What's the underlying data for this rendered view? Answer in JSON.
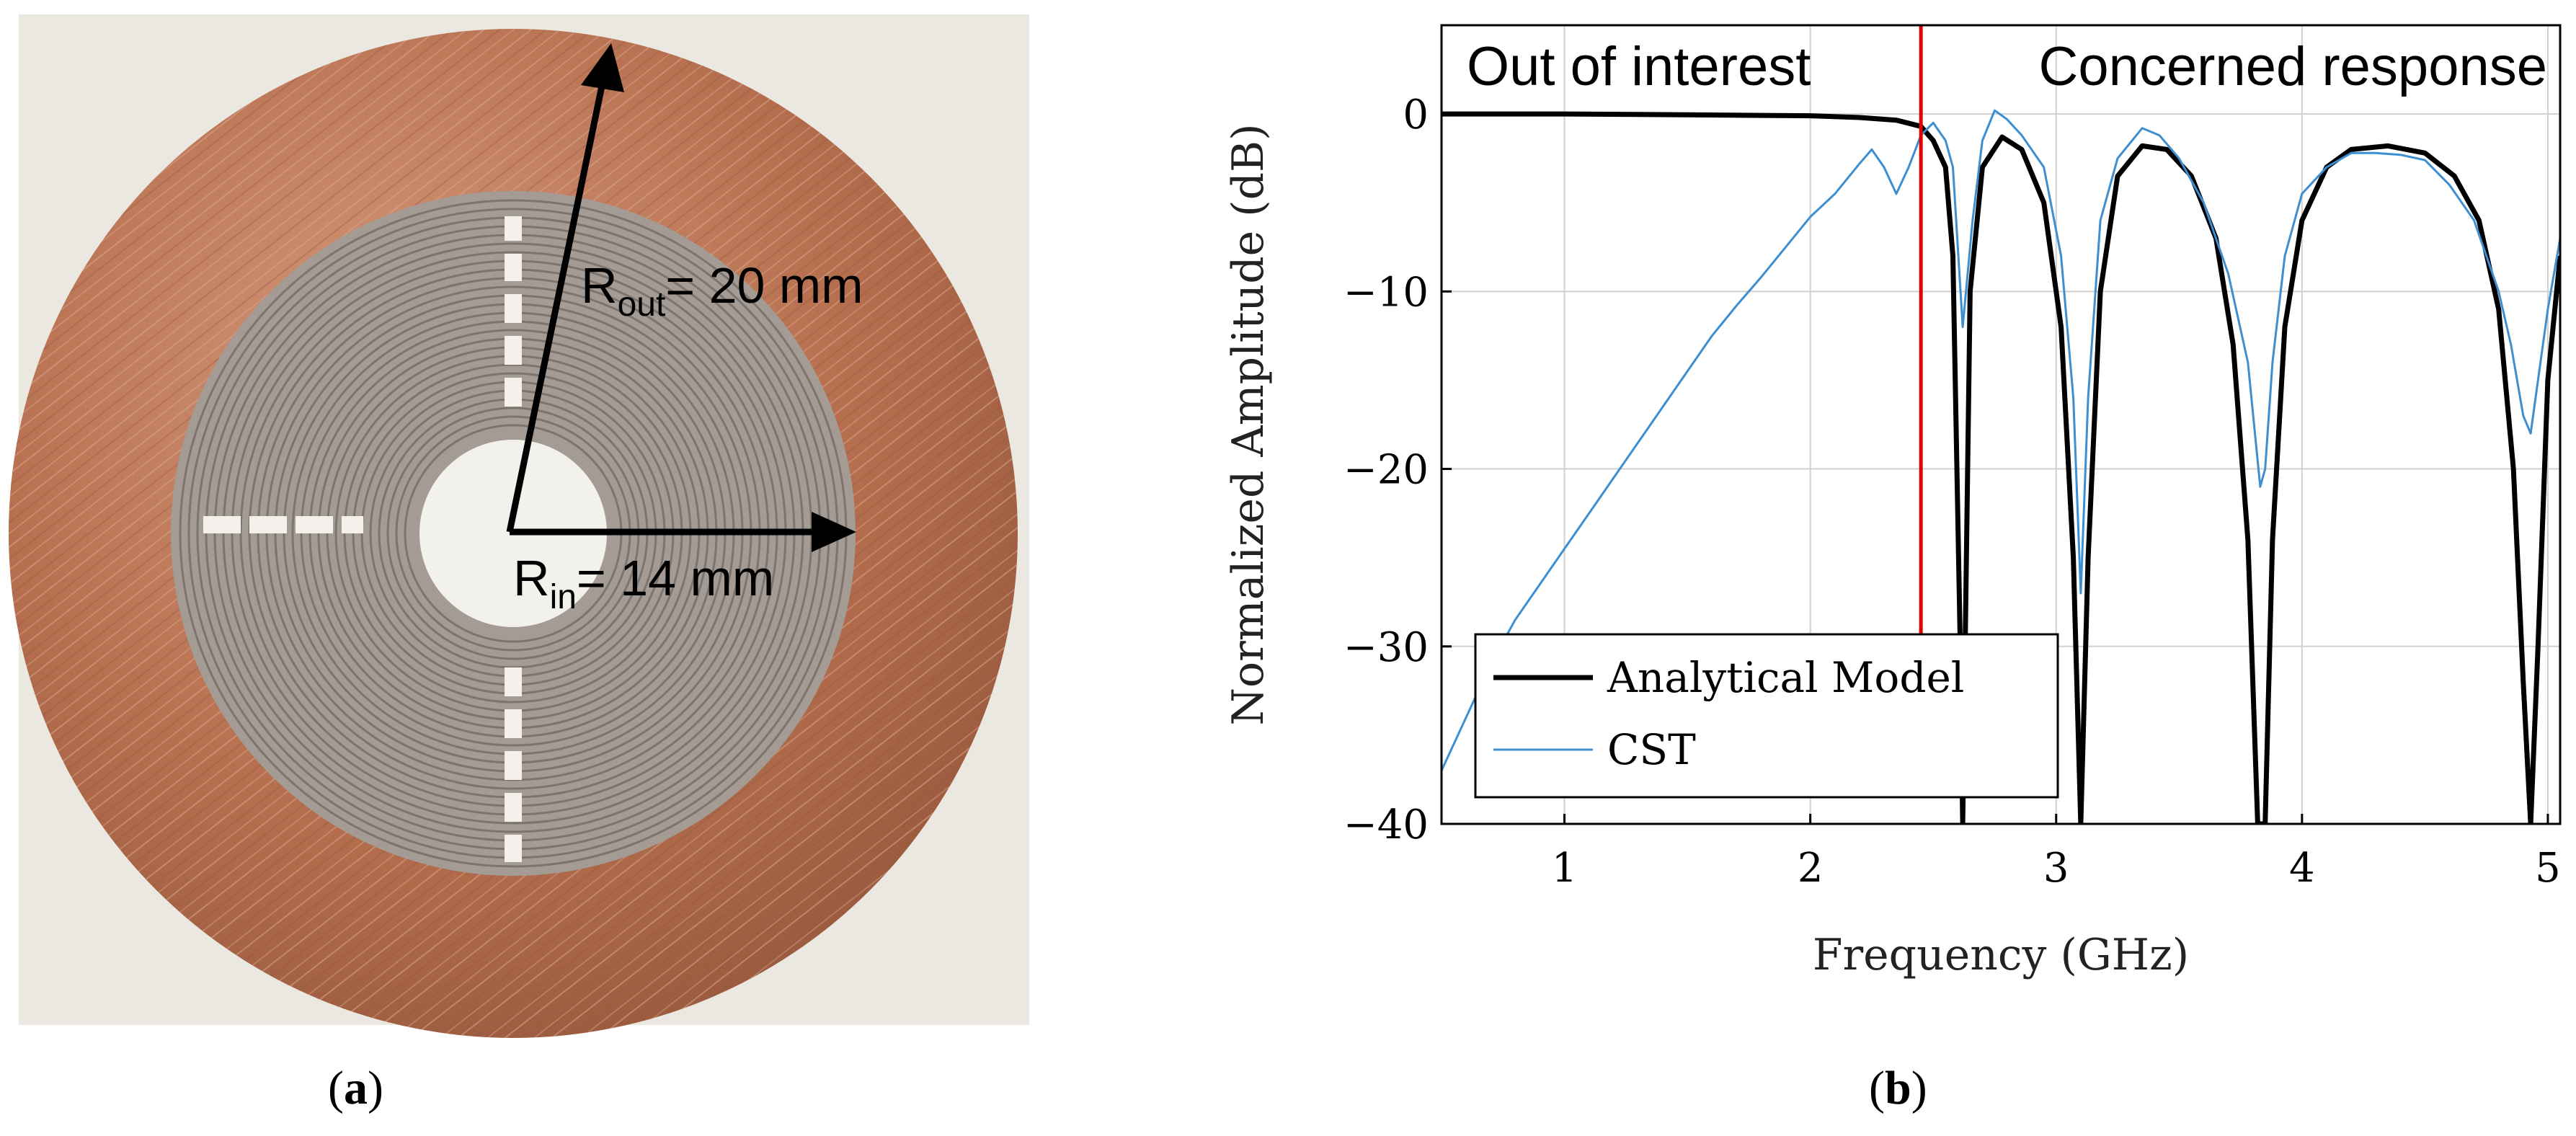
{
  "figure": {
    "caption_a_letter": "a",
    "caption_b_letter": "b"
  },
  "photo": {
    "r_out_main": "R",
    "r_out_sub": "out",
    "r_out_value": "= 20 mm",
    "r_in_main": "R",
    "r_in_sub": "in",
    "r_in_value": "= 14 mm",
    "colors": {
      "copper": "#b87458",
      "background": "#ebe8e1",
      "etched": "#a9a19a"
    }
  },
  "chart_data": {
    "type": "line",
    "title": "",
    "xlabel": "Frequency (GHz)",
    "ylabel": "Normalized Amplitude (dB)",
    "xlim": [
      0.5,
      5.05
    ],
    "ylim": [
      -40,
      5
    ],
    "grid": true,
    "x_ticks": [
      1,
      2,
      3,
      4,
      5
    ],
    "y_ticks": [
      0,
      -10,
      -20,
      -30,
      -40
    ],
    "x_tick_labels": [
      "1",
      "2",
      "3",
      "4",
      "5"
    ],
    "y_tick_labels": [
      "0",
      "−10",
      "−20",
      "−30",
      "−40"
    ],
    "annotations": {
      "left_region": "Out of interest",
      "right_region": "Concerned response",
      "divider_x": 2.45,
      "divider_color": "#e00000"
    },
    "legend": {
      "position": "bottom-left",
      "entries": [
        "Analytical Model",
        "CST"
      ]
    },
    "series": [
      {
        "name": "Analytical Model",
        "color": "#000000",
        "x": [
          0.5,
          1.0,
          1.5,
          2.0,
          2.2,
          2.35,
          2.45,
          2.5,
          2.55,
          2.58,
          2.61,
          2.62,
          2.63,
          2.65,
          2.7,
          2.78,
          2.86,
          2.95,
          3.02,
          3.07,
          3.1,
          3.13,
          3.18,
          3.25,
          3.35,
          3.45,
          3.55,
          3.65,
          3.72,
          3.78,
          3.82,
          3.85,
          3.88,
          3.93,
          4.0,
          4.1,
          4.2,
          4.35,
          4.5,
          4.62,
          4.72,
          4.8,
          4.86,
          4.9,
          4.93,
          4.96,
          5.0,
          5.05
        ],
        "y": [
          0,
          0,
          -0.05,
          -0.1,
          -0.2,
          -0.35,
          -0.7,
          -1.5,
          -3,
          -8,
          -30,
          -40,
          -30,
          -10,
          -3,
          -1.3,
          -2,
          -5,
          -12,
          -25,
          -40,
          -25,
          -10,
          -3.5,
          -1.8,
          -2,
          -3.5,
          -7,
          -13,
          -24,
          -40,
          -40,
          -24,
          -12,
          -6,
          -3,
          -2,
          -1.8,
          -2.2,
          -3.5,
          -6,
          -11,
          -20,
          -32,
          -40,
          -30,
          -15,
          -8
        ]
      },
      {
        "name": "CST",
        "color": "#3d8fd1",
        "x": [
          0.5,
          0.6,
          0.7,
          0.8,
          0.9,
          1.0,
          1.1,
          1.2,
          1.3,
          1.4,
          1.5,
          1.6,
          1.7,
          1.8,
          1.9,
          2.0,
          2.1,
          2.2,
          2.25,
          2.3,
          2.35,
          2.4,
          2.45,
          2.5,
          2.55,
          2.58,
          2.62,
          2.66,
          2.7,
          2.75,
          2.8,
          2.86,
          2.95,
          3.02,
          3.07,
          3.1,
          3.13,
          3.18,
          3.25,
          3.35,
          3.42,
          3.5,
          3.6,
          3.7,
          3.78,
          3.83,
          3.85,
          3.88,
          3.93,
          4.0,
          4.1,
          4.2,
          4.3,
          4.4,
          4.5,
          4.6,
          4.7,
          4.8,
          4.85,
          4.9,
          4.93,
          4.96,
          5.0,
          5.05
        ],
        "y": [
          -37,
          -34,
          -31,
          -28.5,
          -26.5,
          -24.5,
          -22.5,
          -20.5,
          -18.5,
          -16.5,
          -14.5,
          -12.5,
          -10.8,
          -9.2,
          -7.5,
          -5.8,
          -4.5,
          -2.8,
          -2,
          -3,
          -4.5,
          -3,
          -1.2,
          -0.5,
          -1.5,
          -3,
          -12,
          -6,
          -1.5,
          0.2,
          -0.3,
          -1.2,
          -3,
          -8,
          -16,
          -27,
          -16,
          -6,
          -2.5,
          -0.8,
          -1.2,
          -2.5,
          -5,
          -9,
          -14,
          -21,
          -20,
          -14,
          -8,
          -4.5,
          -3,
          -2.2,
          -2.2,
          -2.3,
          -2.6,
          -4,
          -6,
          -10,
          -13,
          -17,
          -18,
          -15,
          -11,
          -7
        ]
      }
    ]
  }
}
